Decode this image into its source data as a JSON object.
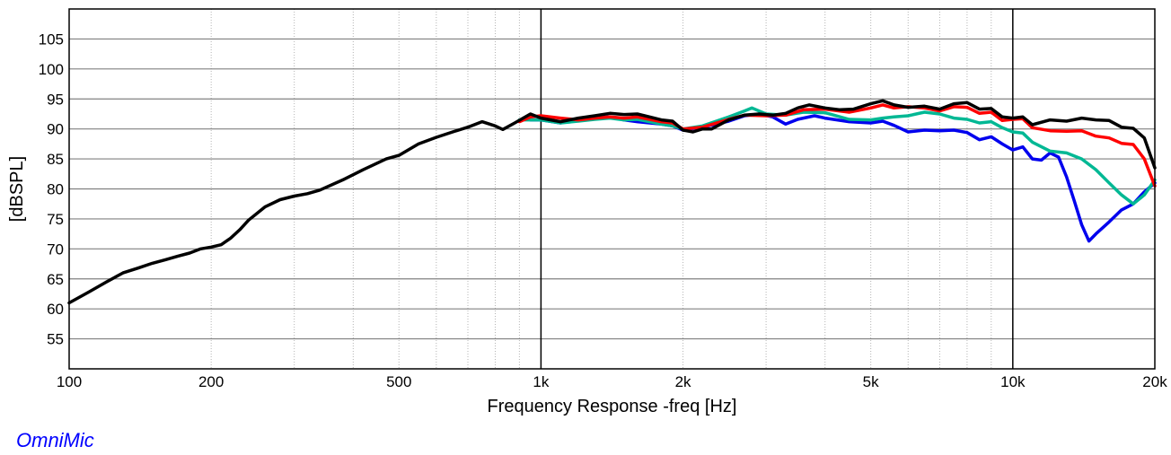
{
  "chart_data": {
    "type": "line",
    "title": "",
    "xlabel": "Frequency Response -freq [Hz]",
    "ylabel": "[dBSPL]",
    "x_scale": "log",
    "xlim": [
      100,
      20000
    ],
    "ylim": [
      50,
      110
    ],
    "x_ticks": [
      100,
      200,
      500,
      1000,
      2000,
      5000,
      10000,
      20000
    ],
    "x_tick_labels": [
      "100",
      "200",
      "500",
      "1k",
      "2k",
      "5k",
      "10k",
      "20k"
    ],
    "y_ticks": [
      55,
      60,
      65,
      70,
      75,
      80,
      85,
      90,
      95,
      100,
      105
    ],
    "y_tick_labels": [
      "55",
      "60",
      "65",
      "70",
      "75",
      "80",
      "85",
      "90",
      "95",
      "100",
      "105"
    ],
    "grid": true,
    "series": [
      {
        "color": "#000000",
        "points": [
          [
            100,
            61
          ],
          [
            110,
            62.8
          ],
          [
            120,
            64.5
          ],
          [
            130,
            66
          ],
          [
            140,
            66.8
          ],
          [
            150,
            67.6
          ],
          [
            160,
            68.2
          ],
          [
            170,
            68.8
          ],
          [
            180,
            69.3
          ],
          [
            190,
            70
          ],
          [
            200,
            70.3
          ],
          [
            210,
            70.7
          ],
          [
            220,
            71.8
          ],
          [
            230,
            73.2
          ],
          [
            240,
            74.8
          ],
          [
            260,
            77
          ],
          [
            280,
            78.2
          ],
          [
            300,
            78.8
          ],
          [
            320,
            79.2
          ],
          [
            340,
            79.8
          ],
          [
            380,
            81.5
          ],
          [
            420,
            83.2
          ],
          [
            470,
            85
          ],
          [
            500,
            85.6
          ],
          [
            550,
            87.5
          ],
          [
            600,
            88.6
          ],
          [
            650,
            89.5
          ],
          [
            700,
            90.3
          ],
          [
            750,
            91.2
          ],
          [
            800,
            90.5
          ],
          [
            830,
            89.9
          ],
          [
            880,
            91
          ],
          [
            950,
            92.5
          ],
          [
            1000,
            91.8
          ],
          [
            1100,
            91.2
          ],
          [
            1200,
            91.8
          ],
          [
            1300,
            92.2
          ],
          [
            1400,
            92.6
          ],
          [
            1500,
            92.4
          ],
          [
            1600,
            92.5
          ],
          [
            1700,
            92
          ],
          [
            1800,
            91.5
          ],
          [
            1900,
            91.3
          ],
          [
            2000,
            89.8
          ],
          [
            2100,
            89.5
          ],
          [
            2200,
            90
          ],
          [
            2300,
            90
          ],
          [
            2500,
            91.5
          ],
          [
            2700,
            92.3
          ],
          [
            2900,
            92.5
          ],
          [
            3100,
            92.3
          ],
          [
            3300,
            92.6
          ],
          [
            3500,
            93.5
          ],
          [
            3700,
            94
          ],
          [
            4000,
            93.5
          ],
          [
            4300,
            93.2
          ],
          [
            4600,
            93.3
          ],
          [
            5000,
            94.2
          ],
          [
            5300,
            94.7
          ],
          [
            5600,
            94
          ],
          [
            6000,
            93.6
          ],
          [
            6500,
            93.8
          ],
          [
            7000,
            93.3
          ],
          [
            7500,
            94.2
          ],
          [
            8000,
            94.4
          ],
          [
            8500,
            93.3
          ],
          [
            9000,
            93.4
          ],
          [
            9500,
            92
          ],
          [
            10000,
            91.8
          ],
          [
            10500,
            92
          ],
          [
            11000,
            90.7
          ],
          [
            12000,
            91.5
          ],
          [
            13000,
            91.3
          ],
          [
            14000,
            91.8
          ],
          [
            15000,
            91.5
          ],
          [
            16000,
            91.4
          ],
          [
            17000,
            90.3
          ],
          [
            18000,
            90.1
          ],
          [
            19000,
            88.5
          ],
          [
            20000,
            83.5
          ]
        ]
      },
      {
        "color": "#ff0000",
        "points": [
          [
            900,
            91.2
          ],
          [
            950,
            92
          ],
          [
            1000,
            92.2
          ],
          [
            1100,
            91.8
          ],
          [
            1200,
            91.5
          ],
          [
            1300,
            91.8
          ],
          [
            1400,
            92
          ],
          [
            1500,
            91.8
          ],
          [
            1600,
            92
          ],
          [
            1700,
            91.6
          ],
          [
            1800,
            91.2
          ],
          [
            1900,
            91
          ],
          [
            2000,
            90
          ],
          [
            2200,
            90.3
          ],
          [
            2500,
            91.6
          ],
          [
            2700,
            92.3
          ],
          [
            3000,
            92.2
          ],
          [
            3300,
            92.3
          ],
          [
            3600,
            93.2
          ],
          [
            4000,
            93.3
          ],
          [
            4500,
            92.8
          ],
          [
            5000,
            93.5
          ],
          [
            5300,
            94
          ],
          [
            5600,
            93.5
          ],
          [
            6000,
            93.7
          ],
          [
            6500,
            93.5
          ],
          [
            7000,
            93
          ],
          [
            7500,
            93.7
          ],
          [
            8000,
            93.6
          ],
          [
            8500,
            92.6
          ],
          [
            9000,
            92.8
          ],
          [
            9500,
            91.4
          ],
          [
            10000,
            91.6
          ],
          [
            10500,
            91.7
          ],
          [
            11000,
            90.2
          ],
          [
            12000,
            89.7
          ],
          [
            13000,
            89.6
          ],
          [
            14000,
            89.7
          ],
          [
            15000,
            88.8
          ],
          [
            16000,
            88.5
          ],
          [
            17000,
            87.6
          ],
          [
            18000,
            87.4
          ],
          [
            19000,
            85
          ],
          [
            20000,
            80.5
          ]
        ]
      },
      {
        "color": "#00b894",
        "points": [
          [
            900,
            91.5
          ],
          [
            1000,
            91.5
          ],
          [
            1100,
            91
          ],
          [
            1200,
            91.3
          ],
          [
            1300,
            91.6
          ],
          [
            1400,
            91.8
          ],
          [
            1500,
            91.5
          ],
          [
            1600,
            91.6
          ],
          [
            1700,
            91.2
          ],
          [
            1800,
            90.8
          ],
          [
            1900,
            90.5
          ],
          [
            2000,
            90
          ],
          [
            2200,
            90.5
          ],
          [
            2500,
            92
          ],
          [
            2700,
            93
          ],
          [
            2800,
            93.5
          ],
          [
            3000,
            92.5
          ],
          [
            3300,
            92.3
          ],
          [
            3600,
            92.8
          ],
          [
            4000,
            92.7
          ],
          [
            4500,
            91.6
          ],
          [
            5000,
            91.5
          ],
          [
            5300,
            91.8
          ],
          [
            5600,
            92
          ],
          [
            6000,
            92.2
          ],
          [
            6500,
            92.8
          ],
          [
            7000,
            92.5
          ],
          [
            7500,
            91.8
          ],
          [
            8000,
            91.6
          ],
          [
            8500,
            91
          ],
          [
            9000,
            91.2
          ],
          [
            9500,
            90.2
          ],
          [
            10000,
            89.5
          ],
          [
            10500,
            89.3
          ],
          [
            11000,
            87.8
          ],
          [
            12000,
            86.3
          ],
          [
            13000,
            86
          ],
          [
            14000,
            85
          ],
          [
            15000,
            83.2
          ],
          [
            16000,
            81
          ],
          [
            17000,
            79
          ],
          [
            18000,
            77.5
          ],
          [
            19000,
            79
          ],
          [
            20000,
            81.5
          ]
        ]
      },
      {
        "color": "#0000ee",
        "points": [
          [
            950,
            91.5
          ],
          [
            1000,
            91.5
          ],
          [
            1100,
            91
          ],
          [
            1200,
            91.6
          ],
          [
            1300,
            91.8
          ],
          [
            1400,
            92
          ],
          [
            1500,
            91.5
          ],
          [
            1600,
            91.2
          ],
          [
            1700,
            91
          ],
          [
            1800,
            90.8
          ],
          [
            1900,
            90.5
          ],
          [
            2000,
            89.8
          ],
          [
            2200,
            90.3
          ],
          [
            2500,
            91.3
          ],
          [
            2700,
            92.2
          ],
          [
            2900,
            92.5
          ],
          [
            3100,
            92
          ],
          [
            3300,
            90.8
          ],
          [
            3500,
            91.6
          ],
          [
            3800,
            92.2
          ],
          [
            4000,
            91.8
          ],
          [
            4500,
            91.2
          ],
          [
            5000,
            91
          ],
          [
            5300,
            91.3
          ],
          [
            5600,
            90.6
          ],
          [
            6000,
            89.5
          ],
          [
            6500,
            89.8
          ],
          [
            7000,
            89.7
          ],
          [
            7500,
            89.8
          ],
          [
            8000,
            89.4
          ],
          [
            8500,
            88.2
          ],
          [
            9000,
            88.7
          ],
          [
            9500,
            87.5
          ],
          [
            10000,
            86.5
          ],
          [
            10500,
            87
          ],
          [
            11000,
            85
          ],
          [
            11500,
            84.8
          ],
          [
            12000,
            86
          ],
          [
            12500,
            85.3
          ],
          [
            13000,
            82
          ],
          [
            13500,
            78
          ],
          [
            14000,
            74
          ],
          [
            14500,
            71.3
          ],
          [
            15000,
            72.5
          ],
          [
            16000,
            74.5
          ],
          [
            17000,
            76.5
          ],
          [
            18000,
            77.5
          ],
          [
            19000,
            79.5
          ],
          [
            20000,
            81
          ]
        ]
      }
    ]
  },
  "footer": {
    "brand": "OmniMic",
    "brand_color": "#0000ff"
  }
}
